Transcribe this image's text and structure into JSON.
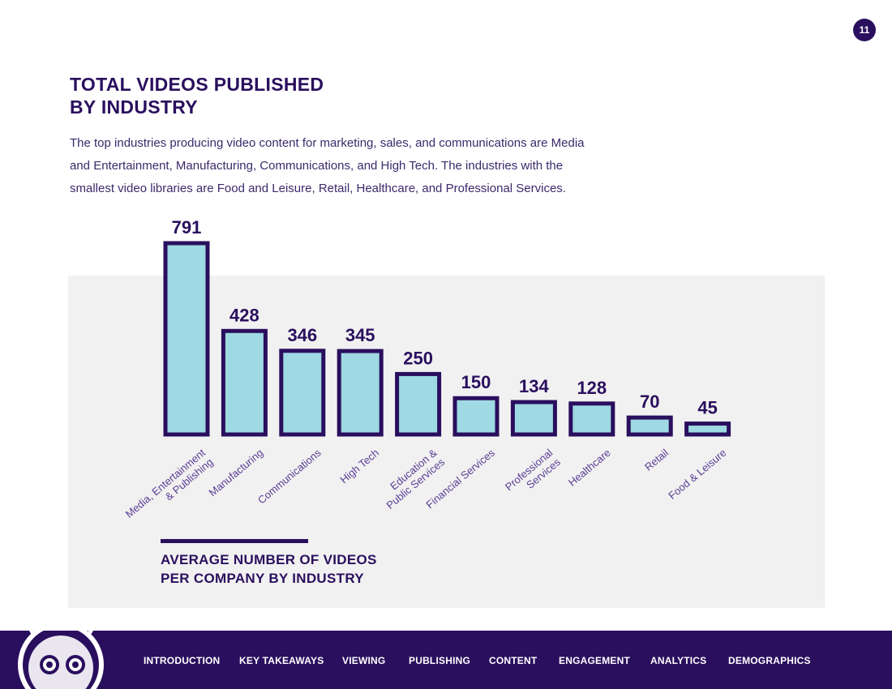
{
  "page_number": "11",
  "title": {
    "line1": "TOTAL VIDEOS PUBLISHED",
    "line2": "BY INDUSTRY"
  },
  "intro": [
    "The top industries producing video content for marketing, sales, and communications are Media",
    "and Entertainment, Manufacturing, Communications, and High Tech. The industries with the",
    "smallest video libraries are Food and Leisure, Retail, Healthcare, and Professional Services."
  ],
  "chart_data": {
    "type": "bar",
    "categories": [
      [
        "Media, Entertainment",
        "& Publishing"
      ],
      [
        "Manufacturing"
      ],
      [
        "Communications"
      ],
      [
        "High Tech"
      ],
      [
        "Education &",
        "Public Services"
      ],
      [
        "Financial Services"
      ],
      [
        "Professional",
        "Services"
      ],
      [
        "Healthcare"
      ],
      [
        "Retail"
      ],
      [
        "Food & Leisure"
      ]
    ],
    "values": [
      791,
      428,
      346,
      345,
      250,
      150,
      134,
      128,
      70,
      45
    ],
    "labels": [
      "791",
      "428",
      "346",
      "345",
      "250",
      "150",
      "134",
      "128",
      "70",
      "45"
    ],
    "bar_fill": "#9fd9e3",
    "bar_stroke": "#2a0f5e",
    "label_color": "#2a0f5e",
    "category_label_color": "#5a3d96",
    "legend": {
      "line1": "AVERAGE NUMBER OF VIDEOS",
      "line2": "PER COMPANY BY INDUSTRY"
    }
  },
  "colors": {
    "brand_purple": "#2a0f5e",
    "panel_gray": "#f1f1f1"
  },
  "footer": {
    "mascot_icon": "robot-mascot-icon",
    "nav": [
      "INTRODUCTION",
      "KEY TAKEAWAYS",
      "VIEWING",
      "PUBLISHING",
      "CONTENT",
      "ENGAGEMENT",
      "ANALYTICS",
      "DEMOGRAPHICS"
    ]
  }
}
